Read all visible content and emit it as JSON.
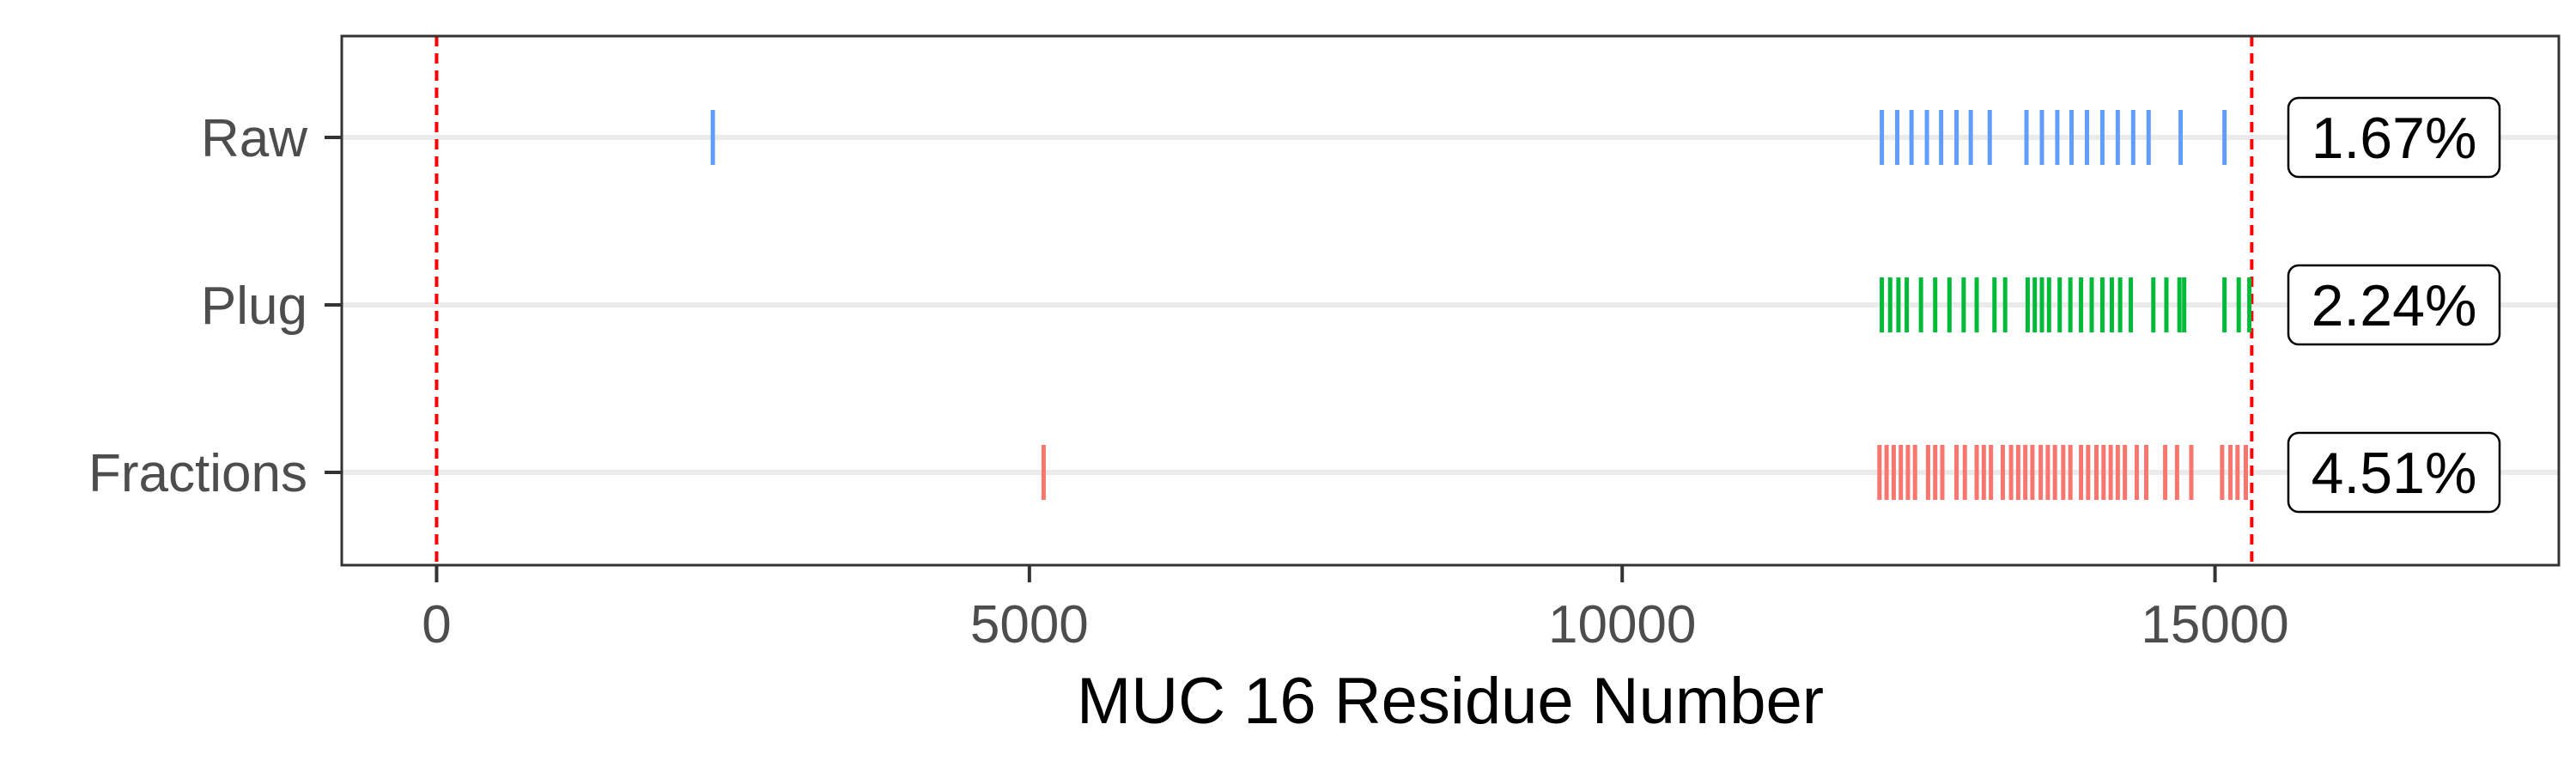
{
  "chart_data": {
    "type": "strip",
    "title": "",
    "xlabel": "MUC 16 Residue Number",
    "ylabel": "",
    "xlim": [
      -800,
      17900
    ],
    "x_ticks": [
      0,
      5000,
      10000,
      15000
    ],
    "x_tick_labels": [
      "0",
      "5000",
      "10000",
      "15000"
    ],
    "grid": "horizontal",
    "legend": "none",
    "reference_lines": [
      {
        "x": 0,
        "style": "dashed",
        "color": "#ff0000"
      },
      {
        "x": 15310,
        "style": "dashed",
        "color": "#ff0000"
      }
    ],
    "series": [
      {
        "name": "Raw",
        "color": "#619cff",
        "percentage_label": "1.67%",
        "x": [
          2330,
          12190,
          12320,
          12440,
          12570,
          12690,
          12820,
          12940,
          13100,
          13410,
          13540,
          13670,
          13790,
          13920,
          14050,
          14180,
          14310,
          14440,
          14710,
          15080
        ]
      },
      {
        "name": "Plug",
        "color": "#00ba38",
        "percentage_label": "2.24%",
        "x": [
          12190,
          12260,
          12330,
          12400,
          12520,
          12640,
          12760,
          12880,
          12990,
          13140,
          13230,
          13420,
          13480,
          13540,
          13600,
          13690,
          13780,
          13870,
          13960,
          14050,
          14130,
          14200,
          14290,
          14480,
          14590,
          14700,
          14740,
          15080,
          15200,
          15290
        ]
      },
      {
        "name": "Fractions",
        "color": "#f8766d",
        "percentage_label": "4.51%",
        "x": [
          5120,
          12170,
          12230,
          12290,
          12350,
          12410,
          12470,
          12580,
          12640,
          12700,
          12820,
          12890,
          12990,
          13050,
          13110,
          13210,
          13280,
          13340,
          13400,
          13460,
          13530,
          13590,
          13650,
          13720,
          13780,
          13870,
          13930,
          14000,
          14060,
          14120,
          14180,
          14240,
          14340,
          14420,
          14580,
          14680,
          14800,
          15060,
          15130,
          15190,
          15260
        ]
      }
    ]
  }
}
